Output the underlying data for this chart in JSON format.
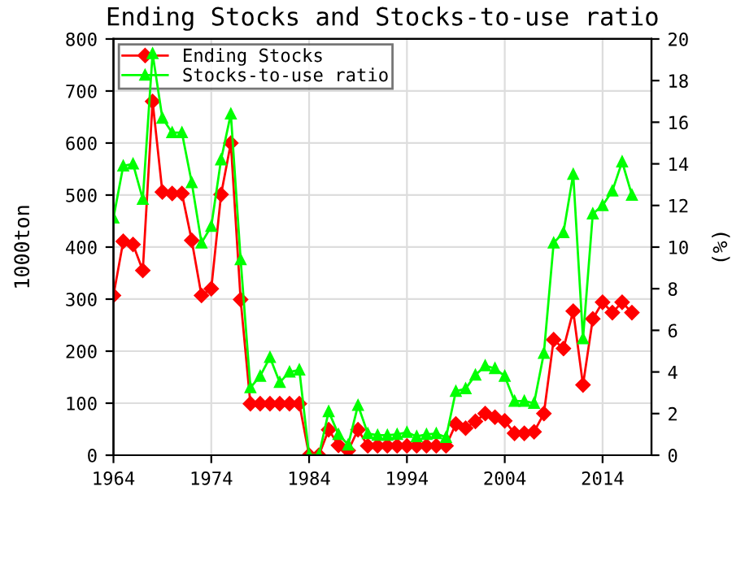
{
  "chart_data": {
    "type": "line",
    "title": "Ending Stocks and Stocks-to-use ratio",
    "ylabel": "1000ton",
    "y2label": "(%)",
    "x": [
      1964,
      1965,
      1966,
      1967,
      1968,
      1969,
      1970,
      1971,
      1972,
      1973,
      1974,
      1975,
      1976,
      1977,
      1978,
      1979,
      1980,
      1981,
      1982,
      1983,
      1984,
      1985,
      1986,
      1987,
      1988,
      1989,
      1990,
      1991,
      1992,
      1993,
      1994,
      1995,
      1996,
      1997,
      1998,
      1999,
      2000,
      2001,
      2002,
      2003,
      2004,
      2005,
      2006,
      2007,
      2008,
      2009,
      2010,
      2011,
      2012,
      2013,
      2014,
      2015,
      2016,
      2017
    ],
    "series": [
      {
        "name": "Ending Stocks",
        "color": "#ff0000",
        "marker": "diamond",
        "values": [
          307,
          411,
          405,
          355,
          680,
          506,
          503,
          503,
          413,
          307,
          320,
          501,
          600,
          299,
          99,
          99,
          99,
          99,
          99,
          99,
          0,
          0,
          49,
          19,
          9,
          49,
          18,
          18,
          18,
          18,
          18,
          18,
          18,
          18,
          18,
          60,
          52,
          65,
          80,
          73,
          66,
          42,
          42,
          45,
          80,
          222,
          205,
          277,
          135,
          262,
          294,
          274,
          294,
          274
        ]
      },
      {
        "name": "Stocks-to-use ratio",
        "color": "#00ff00",
        "marker": "triangle",
        "axis": "y2",
        "values": [
          11.4,
          13.9,
          14.0,
          12.3,
          19.3,
          16.2,
          15.5,
          15.5,
          13.1,
          10.2,
          11.0,
          14.2,
          16.4,
          9.4,
          3.25,
          3.8,
          4.7,
          3.5,
          4.0,
          4.1,
          0,
          0,
          2.1,
          1.0,
          0.5,
          2.4,
          1.04,
          0.96,
          0.96,
          1.0,
          1.1,
          0.9,
          1.0,
          1.04,
          0.86,
          3.07,
          3.2,
          3.85,
          4.3,
          4.17,
          3.8,
          2.6,
          2.6,
          2.5,
          4.9,
          10.2,
          10.7,
          13.5,
          5.6,
          11.6,
          12.0,
          12.7,
          14.1,
          12.5
        ]
      }
    ],
    "xlim": [
      1964,
      2019
    ],
    "xticks": [
      1964,
      1974,
      1984,
      1994,
      2004,
      2014
    ],
    "ylim": [
      0,
      800
    ],
    "yticks": [
      0,
      100,
      200,
      300,
      400,
      500,
      600,
      700,
      800
    ],
    "y2lim": [
      0,
      20
    ],
    "y2ticks": [
      0,
      2,
      4,
      6,
      8,
      10,
      12,
      14,
      16,
      18,
      20
    ],
    "grid": true,
    "legend": "top left",
    "line_style": "solid"
  }
}
